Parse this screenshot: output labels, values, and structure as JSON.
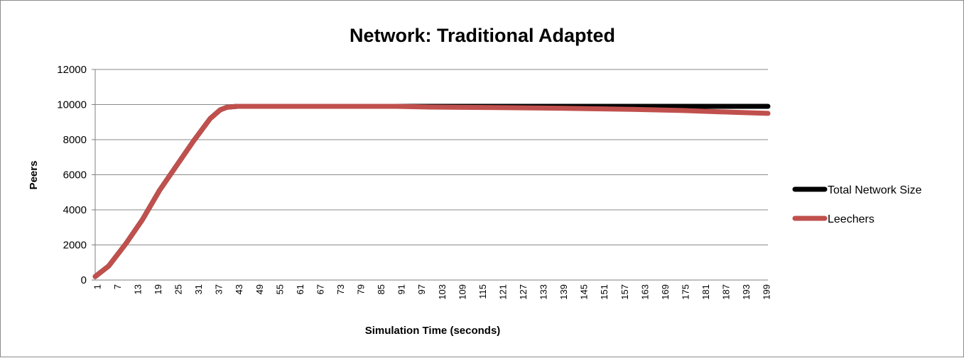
{
  "chart_data": {
    "type": "line",
    "title": "Network: Traditional Adapted",
    "xlabel": "Simulation Time (seconds)",
    "ylabel": "Peers",
    "xlim": [
      1,
      200
    ],
    "ylim": [
      0,
      12000
    ],
    "y_ticks": [
      "0",
      "2000",
      "4000",
      "6000",
      "8000",
      "10000",
      "12000"
    ],
    "x_tick_every": 6,
    "grid": true,
    "legend_position": "right",
    "series": [
      {
        "name": "Total Network Size",
        "color": "#000000",
        "points": [
          [
            1,
            200
          ],
          [
            5,
            800
          ],
          [
            10,
            2050
          ],
          [
            15,
            3450
          ],
          [
            20,
            5100
          ],
          [
            25,
            6500
          ],
          [
            30,
            7900
          ],
          [
            35,
            9200
          ],
          [
            38,
            9700
          ],
          [
            40,
            9850
          ],
          [
            43,
            9900
          ],
          [
            60,
            9900
          ],
          [
            100,
            9900
          ],
          [
            150,
            9900
          ],
          [
            200,
            9900
          ]
        ]
      },
      {
        "name": "Leechers",
        "color": "#c0504d",
        "points": [
          [
            1,
            200
          ],
          [
            5,
            800
          ],
          [
            10,
            2050
          ],
          [
            15,
            3450
          ],
          [
            20,
            5100
          ],
          [
            25,
            6500
          ],
          [
            30,
            7900
          ],
          [
            35,
            9200
          ],
          [
            38,
            9700
          ],
          [
            40,
            9850
          ],
          [
            43,
            9900
          ],
          [
            90,
            9900
          ],
          [
            100,
            9860
          ],
          [
            120,
            9830
          ],
          [
            140,
            9790
          ],
          [
            160,
            9730
          ],
          [
            175,
            9660
          ],
          [
            190,
            9560
          ],
          [
            200,
            9500
          ]
        ]
      }
    ]
  }
}
